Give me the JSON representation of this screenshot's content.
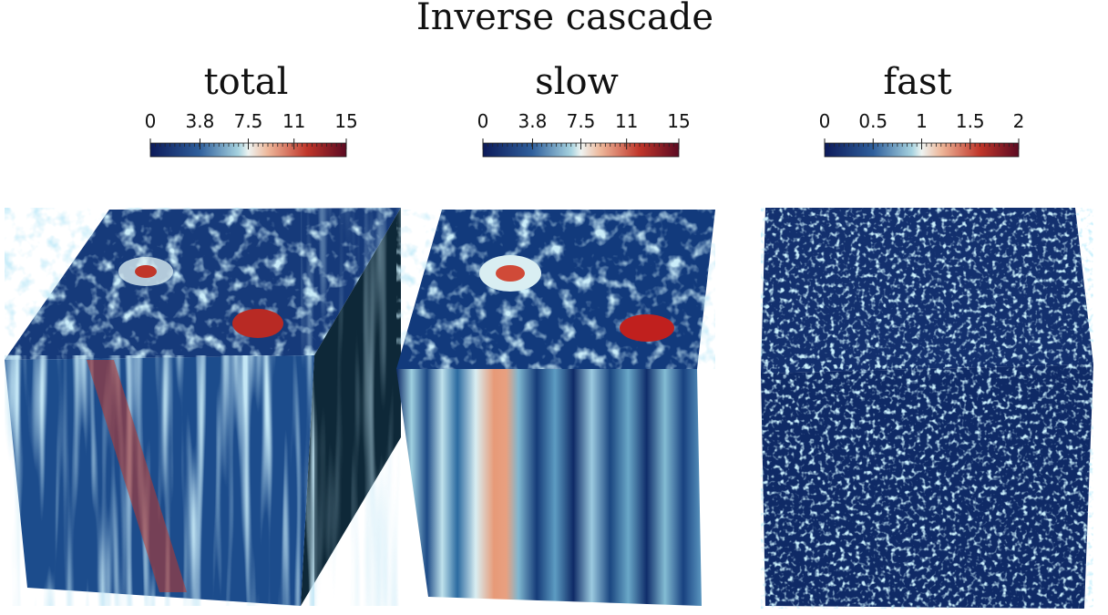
{
  "title": "Inverse cascade",
  "panels": [
    {
      "title": "total",
      "colorbar": {
        "lim": [
          0,
          15
        ],
        "ticks": [
          0,
          3.8,
          7.5,
          11,
          15
        ]
      }
    },
    {
      "title": "slow",
      "colorbar": {
        "lim": [
          0,
          15
        ],
        "ticks": [
          0,
          3.8,
          7.5,
          11,
          15
        ]
      }
    },
    {
      "title": "fast",
      "colorbar": {
        "lim": [
          0,
          2
        ],
        "ticks": [
          0,
          0.5,
          1,
          1.5,
          2
        ]
      }
    }
  ]
}
